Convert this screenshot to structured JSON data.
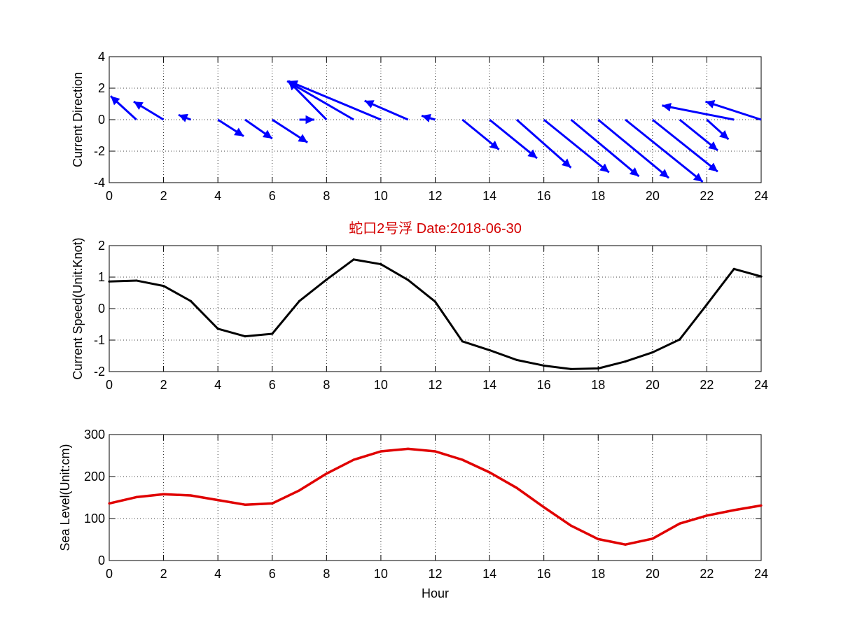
{
  "chart_data": [
    {
      "type": "quiver",
      "ylabel": "Current Direction",
      "xlim": [
        0,
        24
      ],
      "ylim": [
        -4,
        4
      ],
      "xticks": [
        "0",
        "2",
        "4",
        "6",
        "8",
        "10",
        "12",
        "14",
        "16",
        "18",
        "20",
        "22",
        "24"
      ],
      "yticks": [
        "-4",
        "-2",
        "0",
        "2",
        "4"
      ],
      "grid": true,
      "color": "#0000ff",
      "arrows": [
        {
          "x": 1,
          "u": -0.95,
          "v": 1.5
        },
        {
          "x": 2,
          "u": -1.1,
          "v": 1.15
        },
        {
          "x": 3,
          "u": -0.45,
          "v": 0.3
        },
        {
          "x": 4,
          "u": 0.95,
          "v": -1.05
        },
        {
          "x": 5,
          "u": 1.0,
          "v": -1.2
        },
        {
          "x": 6,
          "u": 1.3,
          "v": -1.45
        },
        {
          "x": 7,
          "u": 0.55,
          "v": 0.0
        },
        {
          "x": 8,
          "u": -1.4,
          "v": 2.45
        },
        {
          "x": 9,
          "u": -2.45,
          "v": 2.45
        },
        {
          "x": 10,
          "u": -3.4,
          "v": 2.45
        },
        {
          "x": 11,
          "u": -1.6,
          "v": 1.2
        },
        {
          "x": 12,
          "u": -0.5,
          "v": 0.25
        },
        {
          "x": 13,
          "u": 1.35,
          "v": -1.9
        },
        {
          "x": 14,
          "u": 1.75,
          "v": -2.45
        },
        {
          "x": 15,
          "u": 2.0,
          "v": -3.05
        },
        {
          "x": 16,
          "u": 2.4,
          "v": -3.35
        },
        {
          "x": 17,
          "u": 2.5,
          "v": -3.6
        },
        {
          "x": 18,
          "u": 2.6,
          "v": -3.7
        },
        {
          "x": 19,
          "u": 2.85,
          "v": -3.95
        },
        {
          "x": 20,
          "u": 2.4,
          "v": -3.3
        },
        {
          "x": 21,
          "u": 1.4,
          "v": -1.95
        },
        {
          "x": 22,
          "u": 0.8,
          "v": -1.25
        },
        {
          "x": 23,
          "u": -2.65,
          "v": 0.9
        },
        {
          "x": 24,
          "u": -2.05,
          "v": 1.15
        }
      ]
    },
    {
      "type": "line",
      "title": "蛇口2号浮    Date:2018-06-30",
      "ylabel": "Current Speed(Unit:Knot)",
      "xlim": [
        0,
        24
      ],
      "ylim": [
        -2,
        2
      ],
      "xticks": [
        "0",
        "2",
        "4",
        "6",
        "8",
        "10",
        "12",
        "14",
        "16",
        "18",
        "20",
        "22",
        "24"
      ],
      "yticks": [
        "-2",
        "-1",
        "0",
        "1",
        "2"
      ],
      "grid": true,
      "color": "#000000",
      "x": [
        0,
        1,
        2,
        3,
        4,
        5,
        6,
        7,
        8,
        9,
        10,
        11,
        12,
        13,
        14,
        15,
        16,
        17,
        18,
        19,
        20,
        21,
        22,
        23,
        24
      ],
      "y": [
        0.86,
        0.89,
        0.72,
        0.24,
        -0.64,
        -0.88,
        -0.8,
        0.24,
        0.92,
        1.56,
        1.41,
        0.91,
        0.22,
        -1.04,
        -1.32,
        -1.63,
        -1.81,
        -1.92,
        -1.9,
        -1.68,
        -1.39,
        -0.98,
        0.13,
        1.26,
        1.02
      ]
    },
    {
      "type": "line",
      "xlabel": "Hour",
      "ylabel": "Sea Level(Unit:cm)",
      "xlim": [
        0,
        24
      ],
      "ylim": [
        0,
        300
      ],
      "xticks": [
        "0",
        "2",
        "4",
        "6",
        "8",
        "10",
        "12",
        "14",
        "16",
        "18",
        "20",
        "22",
        "24"
      ],
      "yticks": [
        "0",
        "100",
        "200",
        "300"
      ],
      "grid": true,
      "color": "#e00000",
      "x": [
        0,
        1,
        2,
        3,
        4,
        5,
        6,
        7,
        8,
        9,
        10,
        11,
        12,
        13,
        14,
        15,
        16,
        17,
        18,
        19,
        20,
        21,
        22,
        23,
        24
      ],
      "y": [
        136,
        151,
        158,
        155,
        144,
        133,
        136,
        167,
        207,
        240,
        260,
        266,
        260,
        240,
        210,
        173,
        127,
        83,
        51,
        38,
        52,
        88,
        107,
        120,
        131
      ]
    }
  ]
}
